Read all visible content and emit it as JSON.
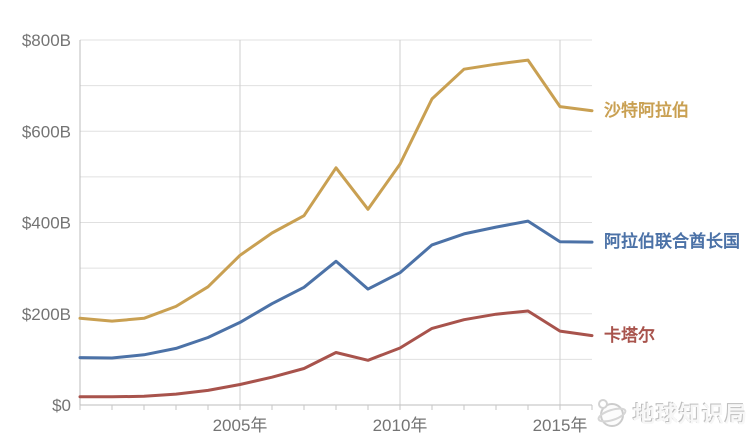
{
  "chart_data": {
    "type": "line",
    "x": [
      2000,
      2001,
      2002,
      2003,
      2004,
      2005,
      2006,
      2007,
      2008,
      2009,
      2010,
      2011,
      2012,
      2013,
      2014,
      2015,
      2016
    ],
    "series": [
      {
        "name": "沙特阿拉伯",
        "color": "#C9A052",
        "values": [
          190,
          184,
          190,
          216,
          259,
          328,
          377,
          415,
          520,
          429,
          528,
          671,
          736,
          747,
          756,
          654,
          645
        ]
      },
      {
        "name": "阿拉伯联合酋长国",
        "color": "#4C72A7",
        "values": [
          104,
          103,
          110,
          124,
          148,
          181,
          222,
          258,
          315,
          254,
          290,
          351,
          375,
          390,
          403,
          358,
          357
        ]
      },
      {
        "name": "卡塔尔",
        "color": "#A8534C",
        "values": [
          18,
          18,
          19,
          24,
          32,
          45,
          61,
          80,
          115,
          98,
          125,
          168,
          187,
          199,
          206,
          162,
          152
        ]
      }
    ],
    "yticks": [
      {
        "value": 0,
        "label": "$0"
      },
      {
        "value": 200,
        "label": "$200B"
      },
      {
        "value": 400,
        "label": "$400B"
      },
      {
        "value": 600,
        "label": "$600B"
      },
      {
        "value": 800,
        "label": "$800B"
      }
    ],
    "xticks": [
      {
        "value": 2005,
        "label": "2005年"
      },
      {
        "value": 2010,
        "label": "2010年"
      },
      {
        "value": 2015,
        "label": "2015年"
      }
    ],
    "ylim": [
      0,
      800
    ],
    "xlim": [
      2000,
      2016
    ],
    "grid": true,
    "grid_step_y": 100,
    "minor_tick_step_x": 1,
    "legend_position": "right-of-line-end"
  },
  "watermark": {
    "text": "地球知识局"
  },
  "styles": {
    "background": "#ffffff",
    "axis_text_color": "#747474",
    "h_gridline_color": "#e0e0e0",
    "v_gridline_color": "#cfcfcf",
    "axis_line_color": "#bdbdbd",
    "tick_color": "#c6c6c6"
  }
}
